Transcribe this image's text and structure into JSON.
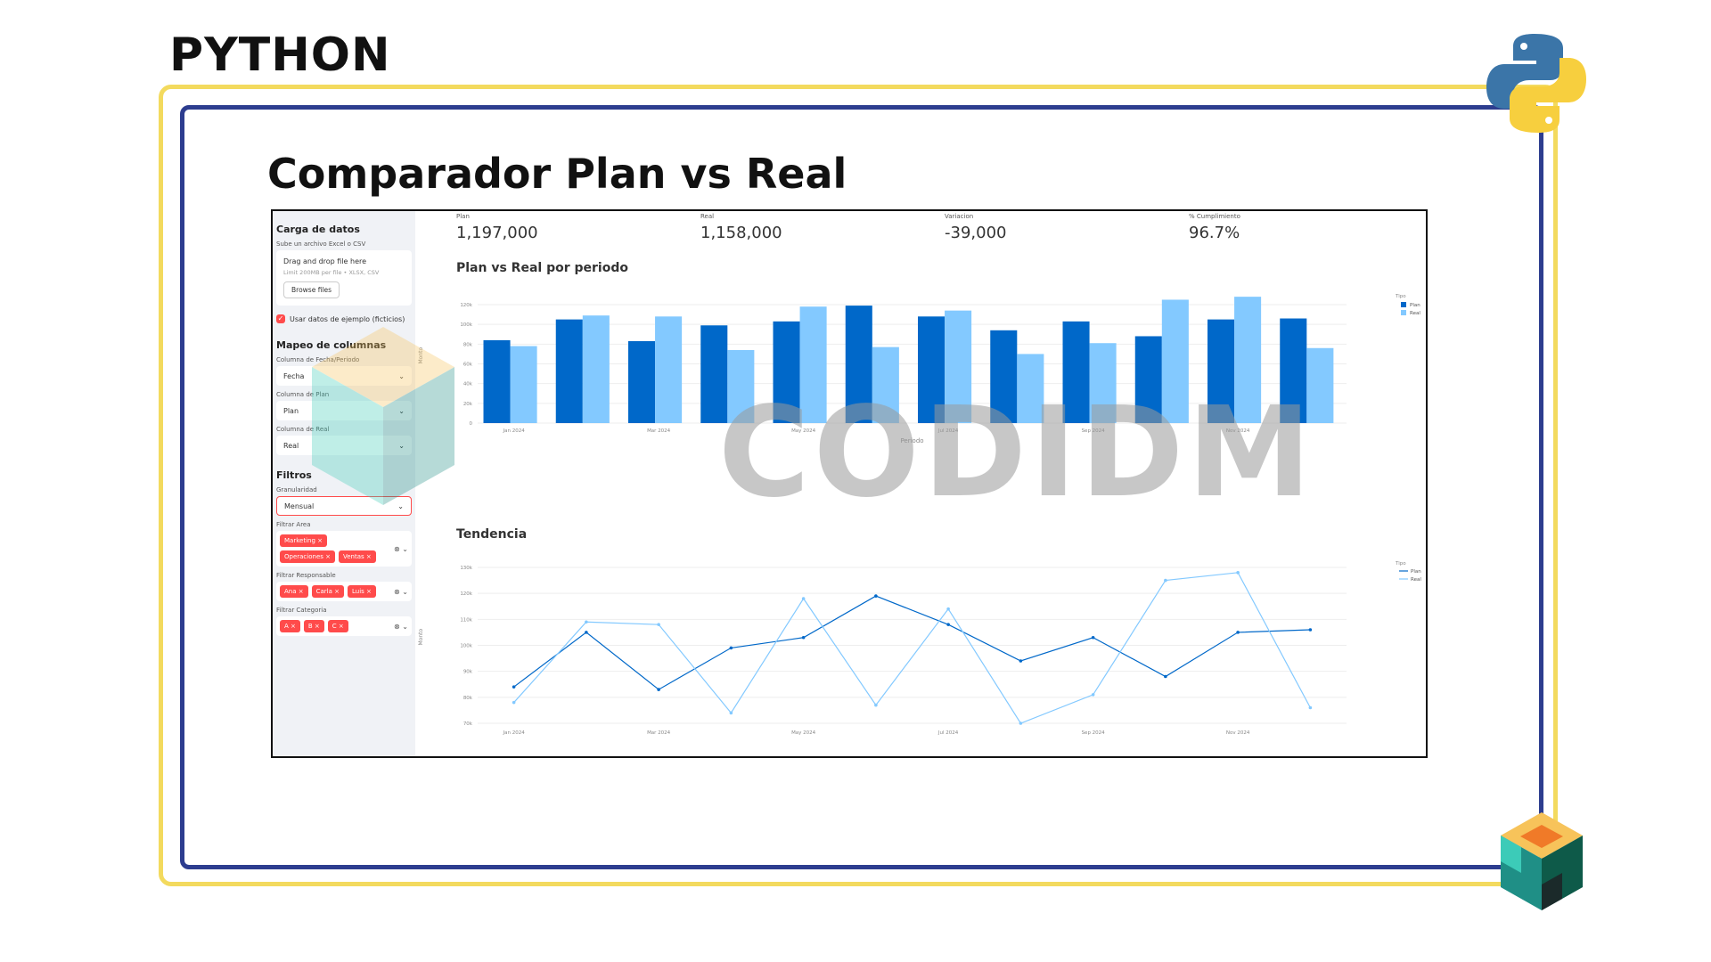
{
  "slide": {
    "heading": "PYTHON",
    "title": "Comparador Plan vs Real",
    "watermark": "CODIDM"
  },
  "sidebar": {
    "upload_header": "Carga de datos",
    "upload_label": "Sube un archivo Excel o CSV",
    "drop_text": "Drag and drop file here",
    "limit_text": "Limit 200MB per file • XLSX, CSV",
    "browse_label": "Browse files",
    "sample_label": "Usar datos de ejemplo (ficticios)",
    "mapping_header": "Mapeo de columnas",
    "fecha_label": "Columna de Fecha/Periodo",
    "fecha_value": "Fecha",
    "plan_label": "Columna de Plan",
    "plan_value": "Plan",
    "real_label": "Columna de Real",
    "real_value": "Real",
    "filters_header": "Filtros",
    "granularity_label": "Granularidad",
    "granularity_value": "Mensual",
    "area_label": "Filtrar Area",
    "area_tags": [
      "Marketing",
      "Operaciones",
      "Ventas"
    ],
    "resp_label": "Filtrar Responsable",
    "resp_tags": [
      "Ana",
      "Carla",
      "Luis"
    ],
    "cat_label": "Filtrar Categoria",
    "cat_tags": [
      "A",
      "B",
      "C"
    ]
  },
  "metrics": [
    {
      "label": "Plan",
      "value": "1,197,000"
    },
    {
      "label": "Real",
      "value": "1,158,000"
    },
    {
      "label": "Variacion",
      "value": "-39,000"
    },
    {
      "label": "% Cumplimiento",
      "value": "96.7%"
    }
  ],
  "colors": {
    "plan": "#0068c9",
    "real": "#83c9ff",
    "tag": "#ff4b4b"
  },
  "chart_data": [
    {
      "type": "bar",
      "title": "Plan vs Real por periodo",
      "xlabel": "Periodo",
      "ylabel": "Monto",
      "ylim": [
        0,
        120000
      ],
      "yticks": [
        "0",
        "20k",
        "40k",
        "60k",
        "80k",
        "100k",
        "120k"
      ],
      "xtick_labels": [
        "Jan 2024",
        "Mar 2024",
        "May 2024",
        "Jul 2024",
        "Sep 2024",
        "Nov 2024"
      ],
      "categories": [
        "Jan 2024",
        "Feb 2024",
        "Mar 2024",
        "Apr 2024",
        "May 2024",
        "Jun 2024",
        "Jul 2024",
        "Aug 2024",
        "Sep 2024",
        "Oct 2024",
        "Nov 2024",
        "Dec 2024"
      ],
      "legend_title": "Tipo",
      "legend_position": "top-right",
      "series": [
        {
          "name": "Plan",
          "values": [
            84000,
            105000,
            83000,
            99000,
            103000,
            119000,
            108000,
            94000,
            103000,
            88000,
            105000,
            106000
          ]
        },
        {
          "name": "Real",
          "values": [
            78000,
            109000,
            108000,
            74000,
            118000,
            77000,
            114000,
            70000,
            81000,
            125000,
            128000,
            76000
          ]
        }
      ]
    },
    {
      "type": "line",
      "title": "Tendencia",
      "ylabel": "Monto",
      "ylim": [
        70000,
        130000
      ],
      "yticks": [
        "70k",
        "80k",
        "90k",
        "100k",
        "110k",
        "120k",
        "130k"
      ],
      "xtick_labels": [
        "Jan 2024",
        "Mar 2024",
        "May 2024",
        "Jul 2024",
        "Sep 2024",
        "Nov 2024"
      ],
      "categories": [
        "Jan 2024",
        "Feb 2024",
        "Mar 2024",
        "Apr 2024",
        "May 2024",
        "Jun 2024",
        "Jul 2024",
        "Aug 2024",
        "Sep 2024",
        "Oct 2024",
        "Nov 2024",
        "Dec 2024"
      ],
      "legend_title": "Tipo",
      "legend_position": "top-right",
      "series": [
        {
          "name": "Plan",
          "values": [
            84000,
            105000,
            83000,
            99000,
            103000,
            119000,
            108000,
            94000,
            103000,
            88000,
            105000,
            106000
          ]
        },
        {
          "name": "Real",
          "values": [
            78000,
            109000,
            108000,
            74000,
            118000,
            77000,
            114000,
            70000,
            81000,
            125000,
            128000,
            76000
          ]
        }
      ]
    }
  ]
}
